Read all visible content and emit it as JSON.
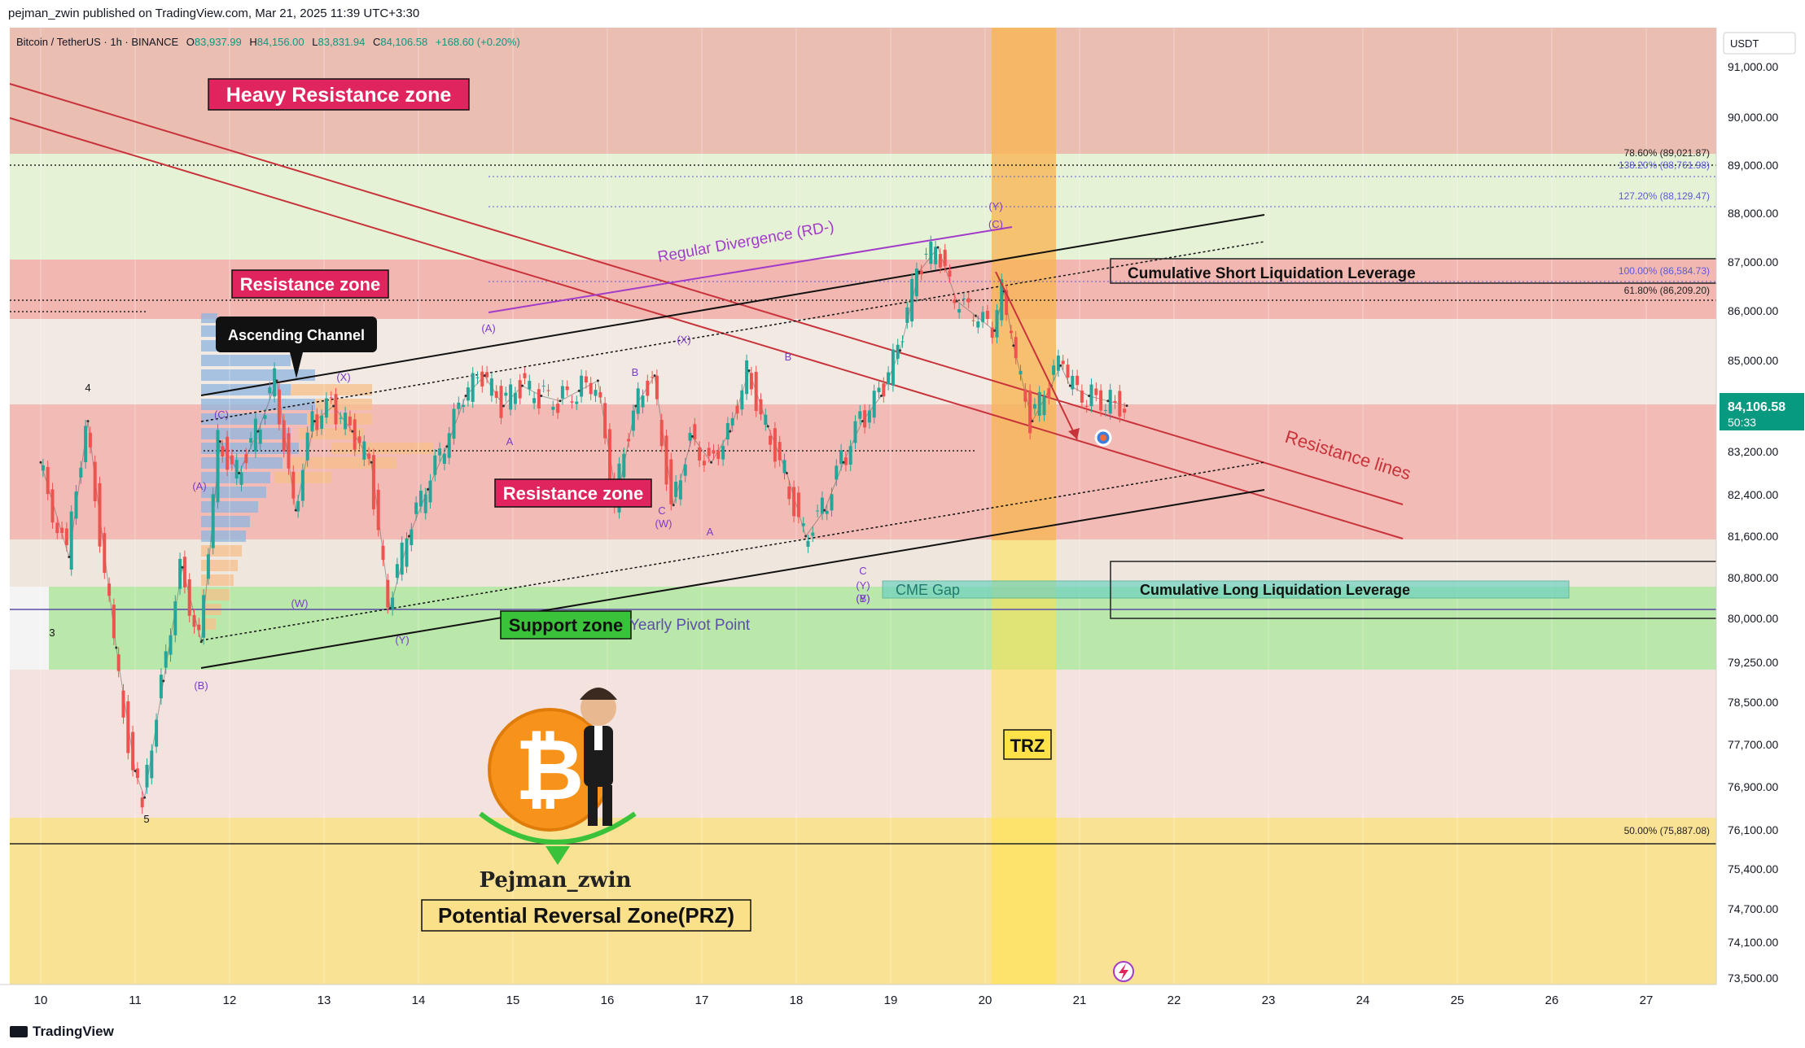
{
  "header": {
    "published": "pejman_zwin published on TradingView.com, Mar 21, 2025 11:39 UTC+3:30"
  },
  "symbol_line": {
    "name": "Bitcoin / TetherUS · 1h · BINANCE",
    "open_label": "O",
    "open": "83,937.99",
    "high_label": "H",
    "high": "84,156.00",
    "low_label": "L",
    "low": "83,831.94",
    "close_label": "C",
    "close": "84,106.58",
    "change": "+168.60 (+0.20%)"
  },
  "price_axis": {
    "currency": "USDT",
    "current_price": "84,106.58",
    "countdown": "50:33"
  },
  "footer": {
    "brand": "TradingView"
  },
  "chart_data": {
    "type": "line",
    "title": "Bitcoin / TetherUS · 1h · BINANCE",
    "y_ticks": [
      "91,000.00",
      "90,000.00",
      "89,000.00",
      "88,000.00",
      "87,000.00",
      "86,000.00",
      "85,000.00",
      "83,200.00",
      "82,400.00",
      "81,600.00",
      "80,800.00",
      "80,000.00",
      "79,250.00",
      "78,500.00",
      "77,700.00",
      "76,900.00",
      "76,100.00",
      "75,400.00",
      "74,700.00",
      "74,100.00",
      "73,500.00"
    ],
    "x_ticks": [
      "10",
      "11",
      "12",
      "13",
      "14",
      "15",
      "16",
      "17",
      "18",
      "19",
      "20",
      "21",
      "22",
      "23",
      "24",
      "25",
      "26",
      "27"
    ],
    "x": [
      10,
      10.3,
      10.5,
      10.8,
      11,
      11.1,
      11.3,
      11.5,
      11.7,
      11.9,
      12.1,
      12.3,
      12.5,
      12.7,
      12.9,
      13.1,
      13.3,
      13.5,
      13.7,
      13.9,
      14.1,
      14.3,
      14.5,
      14.7,
      14.9,
      15.1,
      15.3,
      15.5,
      15.7,
      15.9,
      16.1,
      16.3,
      16.5,
      16.7,
      16.9,
      17.1,
      17.3,
      17.5,
      17.7,
      17.9,
      18.1,
      18.3,
      18.5,
      18.7,
      18.9,
      19.1,
      19.3,
      19.5,
      19.7,
      19.9,
      20.1,
      20.2,
      20.3,
      20.5,
      20.7,
      20.8,
      20.9,
      21.1,
      21.3,
      21.5
    ],
    "y": [
      83000,
      81200,
      83800,
      79500,
      77200,
      76700,
      78900,
      81000,
      79600,
      83400,
      82800,
      83600,
      84600,
      82100,
      83800,
      84100,
      83600,
      83000,
      80200,
      81600,
      82500,
      83300,
      84300,
      84700,
      84100,
      84500,
      84300,
      84200,
      84400,
      84600,
      82300,
      84100,
      84700,
      82200,
      83500,
      83000,
      83600,
      84800,
      83700,
      82800,
      81600,
      82100,
      83000,
      83800,
      84300,
      85200,
      86800,
      87300,
      86200,
      85900,
      85600,
      86400,
      85300,
      83800,
      84500,
      84900,
      84500,
      84300,
      84200,
      84106.58
    ],
    "zones": [
      {
        "label": "Heavy Resistance zone",
        "from": 89000,
        "to": 91300
      },
      {
        "label": "Resistance zone",
        "from": 85980,
        "to": 87070
      },
      {
        "label": "Resistance zone",
        "from": 81450,
        "to": 83980
      },
      {
        "label": "Support zone",
        "from": 79050,
        "to": 80480
      },
      {
        "label": "Potential Reversal Zone(PRZ)",
        "from": 73500,
        "to": 76300
      },
      {
        "label": "TRZ",
        "from_day": 20.1,
        "to_day": 20.8
      }
    ],
    "fibonacci": [
      {
        "label": "78.60% (89,021.87)",
        "value": 89021.87
      },
      {
        "label": "138.20% (88,761.98)",
        "value": 88761.98
      },
      {
        "label": "127.20% (88,129.47)",
        "value": 88129.47
      },
      {
        "label": "100.00% (86,584.73)",
        "value": 86584.73
      },
      {
        "label": "61.80% (86,209.20)",
        "value": 86209.2
      },
      {
        "label": "50.00% (75,887.08)",
        "value": 75887.08
      }
    ],
    "annotations": {
      "heavy_resistance": "Heavy Resistance zone",
      "resistance_upper": "Resistance zone",
      "resistance_mid": "Resistance zone",
      "support": "Support zone",
      "ascending_channel": "Ascending Channel",
      "divergence": "Regular Divergence (RD-)",
      "resistance_lines": "Resistance lines",
      "short_liq": "Cumulative Short Liquidation Leverage",
      "long_liq": "Cumulative Long Liquidation Leverage",
      "cme_gap": "CME Gap",
      "yearly_pivot": "Yearly Pivot Point",
      "trz": "TRZ",
      "prz": "Potential Reversal Zone(PRZ)",
      "author": "Pejman_zwin"
    },
    "wave_labels": [
      "4",
      "3",
      "5",
      "(A)",
      "(B)",
      "(C)",
      "(W)",
      "(X)",
      "(Y)",
      "A",
      "B",
      "C",
      "(W)",
      "(X)",
      "(Y)",
      "(A)",
      "B",
      "A",
      "C",
      "(Y)",
      "(B)",
      "(C)",
      "(Y)"
    ],
    "colors": {
      "up": "#26a69a",
      "down": "#ef5350",
      "resistance": "#f28b82",
      "support": "#8fdc7a",
      "prz": "#fbe08a",
      "trz": "#ffe24a"
    }
  }
}
